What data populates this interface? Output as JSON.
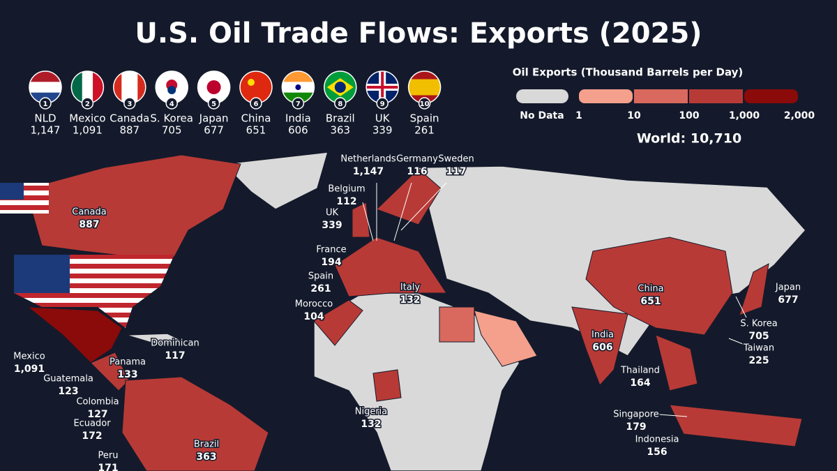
{
  "title": "U.S. Oil Trade Flows: Exports (2025)",
  "top_exporters": [
    {
      "rank": "1",
      "name": "NLD",
      "value": "1,147"
    },
    {
      "rank": "2",
      "name": "Mexico",
      "value": "1,091"
    },
    {
      "rank": "3",
      "name": "Canada",
      "value": "887"
    },
    {
      "rank": "4",
      "name": "S. Korea",
      "value": "705"
    },
    {
      "rank": "5",
      "name": "Japan",
      "value": "677"
    },
    {
      "rank": "6",
      "name": "China",
      "value": "651"
    },
    {
      "rank": "7",
      "name": "India",
      "value": "606"
    },
    {
      "rank": "8",
      "name": "Brazil",
      "value": "363"
    },
    {
      "rank": "9",
      "name": "UK",
      "value": "339"
    },
    {
      "rank": "10",
      "name": "Spain",
      "value": "261"
    }
  ],
  "legend": {
    "title": "Oil Exports (Thousand Barrels per Day)",
    "no_data": "No Data",
    "no_data_color": "#d9d9d9",
    "ticks": [
      "1",
      "10",
      "100",
      "1,000",
      "2,000"
    ],
    "colors": [
      "#f4a08d",
      "#d9695e",
      "#b83a36",
      "#8b0a0a"
    ]
  },
  "world_total": "World: 10,710",
  "map_labels": [
    {
      "name": "Canada",
      "value": "887"
    },
    {
      "name": "Netherlands",
      "value": "1,147"
    },
    {
      "name": "Germany",
      "value": "116"
    },
    {
      "name": "Sweden",
      "value": "117"
    },
    {
      "name": "Belgium",
      "value": "112"
    },
    {
      "name": "UK",
      "value": "339"
    },
    {
      "name": "France",
      "value": "194"
    },
    {
      "name": "Spain",
      "value": "261"
    },
    {
      "name": "Morocco",
      "value": "104"
    },
    {
      "name": "Italy",
      "value": "132"
    },
    {
      "name": "Dominican",
      "value": "117"
    },
    {
      "name": "Mexico",
      "value": "1,091"
    },
    {
      "name": "Panama",
      "value": "133"
    },
    {
      "name": "Guatemala",
      "value": "123"
    },
    {
      "name": "Colombia",
      "value": "127"
    },
    {
      "name": "Ecuador",
      "value": "172"
    },
    {
      "name": "Peru",
      "value": "171"
    },
    {
      "name": "Brazil",
      "value": "363"
    },
    {
      "name": "Nigeria",
      "value": "132"
    },
    {
      "name": "China",
      "value": "651"
    },
    {
      "name": "India",
      "value": "606"
    },
    {
      "name": "Japan",
      "value": "677"
    },
    {
      "name": "S. Korea",
      "value": "705"
    },
    {
      "name": "Taiwan",
      "value": "225"
    },
    {
      "name": "Thailand",
      "value": "164"
    },
    {
      "name": "Singapore",
      "value": "179"
    },
    {
      "name": "Indonesia",
      "value": "156"
    }
  ]
}
